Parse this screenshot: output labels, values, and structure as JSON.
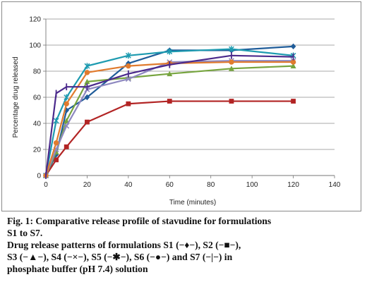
{
  "chart_data": {
    "type": "line",
    "xlabel": "Time (minutes)",
    "ylabel": "Percentage drug released",
    "xlim": [
      0,
      140
    ],
    "ylim": [
      0,
      120
    ],
    "xticks": [
      0,
      20,
      40,
      60,
      80,
      100,
      120,
      140
    ],
    "yticks": [
      0,
      20,
      40,
      60,
      80,
      100,
      120
    ],
    "grid": "horizontal",
    "legend": "none",
    "x": [
      0,
      5,
      10,
      20,
      40,
      60,
      90,
      120
    ],
    "series": [
      {
        "name": "S1",
        "color": "#1F5C99",
        "marker": "diamond",
        "values": [
          0,
          16,
          50,
          60,
          86,
          96,
          96,
          99
        ]
      },
      {
        "name": "S2",
        "color": "#B22424",
        "marker": "square",
        "values": [
          0,
          12,
          22,
          41,
          55,
          57,
          57,
          57
        ]
      },
      {
        "name": "S3",
        "color": "#76A43E",
        "marker": "triangle",
        "values": [
          0,
          18,
          42,
          72,
          75,
          78,
          82,
          84
        ]
      },
      {
        "name": "S4",
        "color": "#8E88C0",
        "marker": "x",
        "values": [
          0,
          20,
          38,
          66,
          74,
          87,
          88,
          88
        ]
      },
      {
        "name": "S5",
        "color": "#1E9BB0",
        "marker": "asterisk",
        "values": [
          0,
          42,
          60,
          84,
          92,
          95,
          97,
          92
        ]
      },
      {
        "name": "S6",
        "color": "#E07B2E",
        "marker": "circle",
        "values": [
          0,
          25,
          55,
          79,
          84,
          86,
          87,
          87
        ]
      },
      {
        "name": "S7",
        "color": "#4B2A8C",
        "marker": "bar",
        "values": [
          0,
          63,
          68,
          68,
          78,
          85,
          92,
          91
        ]
      }
    ]
  },
  "caption": {
    "line1": "Fig. 1: Comparative release profile of stavudine for formulations",
    "line2": "S1 to S7.",
    "line3": "Drug release patterns of formulations S1 (−♦−), S2 (−■−),",
    "line4": "S3 (−▲−), S4 (−×−), S5 (−✱−), S6 (−●−) and S7 (−|−) in",
    "line5": "phosphate buffer (pH 7.4) solution"
  }
}
